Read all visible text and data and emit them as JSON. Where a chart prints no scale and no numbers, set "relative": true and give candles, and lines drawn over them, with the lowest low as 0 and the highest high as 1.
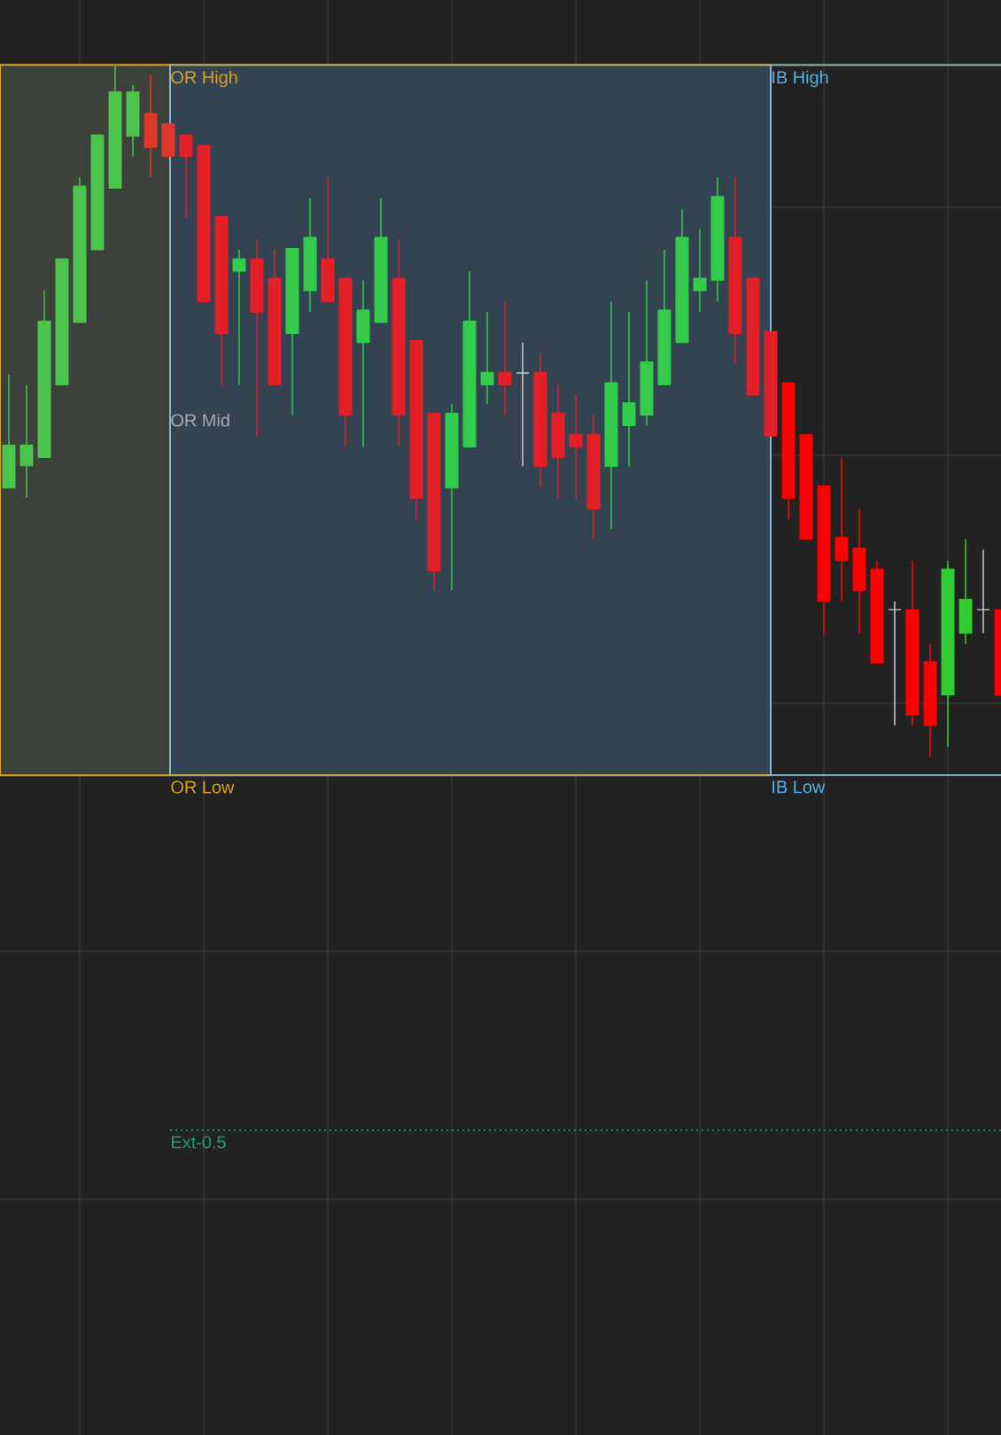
{
  "chart_data": {
    "type": "candlestick",
    "relative": true,
    "grid": true,
    "categories": [
      null,
      null,
      null,
      null,
      null,
      null,
      null,
      null,
      null,
      null,
      null,
      null,
      null,
      null,
      null,
      null,
      null,
      null,
      null,
      null,
      null,
      null,
      null,
      null,
      null,
      null,
      null,
      null,
      null,
      null,
      null,
      null,
      null,
      null,
      null,
      null,
      null,
      null,
      null,
      null,
      null,
      null,
      null,
      null,
      null,
      null,
      null,
      null,
      null,
      null,
      null,
      null,
      null,
      null,
      null,
      null,
      null
    ],
    "ohlc": [
      [
        0.389,
        0.553,
        0.389,
        0.451
      ],
      [
        0.421,
        0.538,
        0.375,
        0.451
      ],
      [
        0.433,
        0.674,
        0.433,
        0.63
      ],
      [
        0.538,
        0.72,
        0.538,
        0.72
      ],
      [
        0.628,
        0.838,
        0.628,
        0.825
      ],
      [
        0.733,
        0.899,
        0.733,
        0.899
      ],
      [
        0.822,
        1.0,
        0.822,
        0.961
      ],
      [
        0.897,
        0.971,
        0.868,
        0.961
      ],
      [
        0.93,
        0.986,
        0.838,
        0.881
      ],
      [
        0.915,
        0.915,
        0.868,
        0.868
      ],
      [
        0.899,
        0.899,
        0.779,
        0.868
      ],
      [
        0.884,
        0.884,
        0.658,
        0.658
      ],
      [
        0.781,
        0.781,
        0.538,
        0.612
      ],
      [
        0.702,
        0.733,
        0.538,
        0.72
      ],
      [
        0.72,
        0.748,
        0.464,
        0.643
      ],
      [
        0.692,
        0.733,
        0.538,
        0.538
      ],
      [
        0.612,
        0.735,
        0.494,
        0.735
      ],
      [
        0.674,
        0.807,
        0.643,
        0.751
      ],
      [
        0.72,
        0.838,
        0.658,
        0.658
      ],
      [
        0.692,
        0.692,
        0.448,
        0.494
      ],
      [
        0.599,
        0.689,
        0.448,
        0.646
      ],
      [
        0.628,
        0.807,
        0.628,
        0.751
      ],
      [
        0.692,
        0.748,
        0.448,
        0.494
      ],
      [
        0.602,
        0.602,
        0.343,
        0.374
      ],
      [
        0.497,
        0.497,
        0.241,
        0.269
      ],
      [
        0.389,
        0.51,
        0.241,
        0.497
      ],
      [
        0.448,
        0.702,
        0.448,
        0.63
      ],
      [
        0.538,
        0.643,
        0.51,
        0.556
      ],
      [
        0.556,
        0.658,
        0.494,
        0.538
      ],
      [
        0.555,
        0.599,
        0.42,
        0.555
      ],
      [
        0.556,
        0.584,
        0.389,
        0.42
      ],
      [
        0.497,
        0.538,
        0.374,
        0.433
      ],
      [
        0.466,
        0.523,
        0.374,
        0.448
      ],
      [
        0.466,
        0.494,
        0.315,
        0.359
      ],
      [
        0.42,
        0.658,
        0.33,
        0.541
      ],
      [
        0.479,
        0.643,
        0.42,
        0.512
      ],
      [
        0.494,
        0.689,
        0.479,
        0.571
      ],
      [
        0.538,
        0.733,
        0.538,
        0.646
      ],
      [
        0.599,
        0.792,
        0.599,
        0.751
      ],
      [
        0.674,
        0.763,
        0.643,
        0.692
      ],
      [
        0.689,
        0.838,
        0.658,
        0.81
      ],
      [
        0.751,
        0.838,
        0.569,
        0.612
      ],
      [
        0.692,
        0.692,
        0.523,
        0.523
      ],
      [
        0.615,
        0.615,
        0.464,
        0.464
      ],
      [
        0.541,
        0.541,
        0.343,
        0.374
      ],
      [
        0.466,
        0.466,
        0.315,
        0.315
      ],
      [
        0.392,
        0.392,
        0.179,
        0.225
      ],
      [
        0.318,
        0.433,
        0.225,
        0.284
      ],
      [
        0.302,
        0.359,
        0.179,
        0.241
      ],
      [
        0.272,
        0.284,
        0.136,
        0.136
      ],
      [
        0.213,
        0.225,
        0.046,
        0.213
      ],
      [
        0.213,
        0.284,
        0.046,
        0.061
      ],
      [
        0.138,
        0.164,
        0.0,
        0.046
      ],
      [
        0.09,
        0.284,
        0.015,
        0.272
      ],
      [
        0.179,
        0.315,
        0.164,
        0.228
      ],
      [
        0.213,
        0.3,
        0.179,
        0.213
      ],
      [
        0.213,
        0.213,
        0.09,
        0.09
      ]
    ],
    "colors": [
      "#4cc44c",
      "#4cc44c",
      "#4cc44c",
      "#4cc44c",
      "#4cc44c",
      "#4cc44c",
      "#4cc44c",
      "#4cc44c",
      "#e03828",
      "#e03828",
      "#e32028",
      "#e32028",
      "#e32028",
      "#33cc4d",
      "#e32028",
      "#e32028",
      "#33cc4d",
      "#33cc4d",
      "#e32028",
      "#e32028",
      "#33cc4d",
      "#33cc4d",
      "#e32028",
      "#e32028",
      "#e32028",
      "#33cc4d",
      "#33cc4d",
      "#33cc4d",
      "#e32028",
      "#c8ccd4",
      "#e32028",
      "#e32028",
      "#e32028",
      "#e32028",
      "#33cc4d",
      "#33cc4d",
      "#33cc4d",
      "#33cc4d",
      "#33cc4d",
      "#33cc4d",
      "#33cc4d",
      "#e32028",
      "#e32028",
      "#e32028",
      "#ff0000",
      "#ff0000",
      "#ff0000",
      "#ff0000",
      "#ff0000",
      "#ff0000",
      "#c8ccd4",
      "#ff0000",
      "#ff0000",
      "#33cc33",
      "#33cc33",
      "#c8ccd4",
      "#ff0000"
    ],
    "annotations": [
      "OR Mid"
    ],
    "ref_lines": [
      {
        "axis": "y",
        "value": 1.0,
        "label": "OR High",
        "color": "#d9a21b",
        "line_style": "solid"
      },
      {
        "axis": "y",
        "value": -0.026,
        "label": "OR Low",
        "color": "#d9a21b",
        "line_style": "solid"
      },
      {
        "axis": "y",
        "value": 1.0,
        "label": "IB High",
        "color": "#5ab0e8",
        "line_style": "solid"
      },
      {
        "axis": "y",
        "value": -0.026,
        "label": "IB Low",
        "color": "#5ab0e8",
        "line_style": "solid"
      },
      {
        "axis": "y",
        "value": -0.539,
        "label": "Ext-0.5",
        "color": "#1f9e6e",
        "line_style": "dotted"
      }
    ]
  }
}
